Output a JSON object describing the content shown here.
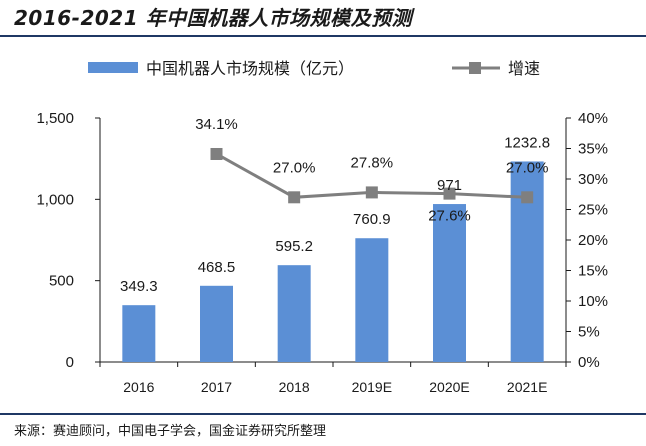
{
  "title": "2016-2021 年中国机器人市场规模及预测",
  "source": "来源：赛迪顾问，中国电子学会，国金证券研究所整理",
  "chart_data": {
    "type": "bar",
    "categories": [
      "2016",
      "2017",
      "2018",
      "2019E",
      "2020E",
      "2021E"
    ],
    "series": [
      {
        "name": "中国机器人市场规模（亿元）",
        "type": "bar",
        "axis": "left",
        "values": [
          349.3,
          468.5,
          595.2,
          760.9,
          971,
          1232.8
        ],
        "labels": [
          "349.3",
          "468.5",
          "595.2",
          "760.9",
          "971",
          "1232.8"
        ],
        "color": "#5b8fd5"
      },
      {
        "name": "增速",
        "type": "line",
        "axis": "right",
        "values": [
          null,
          34.1,
          27.0,
          27.8,
          27.6,
          27.0
        ],
        "labels": [
          "",
          "34.1%",
          "27.0%",
          "27.8%",
          "27.6%",
          "27.0%"
        ],
        "color": "#7f7f7f"
      }
    ],
    "y_left": {
      "min": 0,
      "max": 1500,
      "ticks": [
        "0",
        "500",
        "1,000",
        "1,500"
      ]
    },
    "y_right": {
      "min": 0,
      "max": 40,
      "ticks": [
        "0%",
        "5%",
        "10%",
        "15%",
        "20%",
        "25%",
        "30%",
        "35%",
        "40%"
      ]
    },
    "legend_position": "top",
    "grid": false
  }
}
